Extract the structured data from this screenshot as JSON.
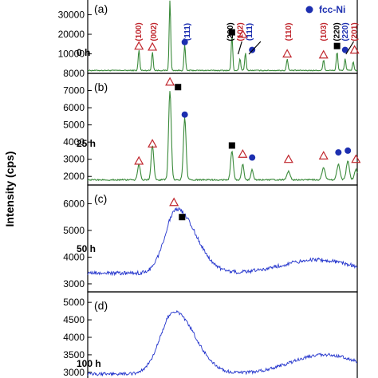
{
  "chart_data": [
    {
      "type": "line",
      "panel_label": "(a)",
      "time_label": "0 h",
      "color": "#3a8a3a",
      "ylim": [
        0,
        40000
      ],
      "yticks": [
        "10000",
        "20000",
        "30000"
      ],
      "ytick_values": [
        10000,
        20000,
        30000
      ],
      "baseline": 1500,
      "peaks": [
        {
          "x": 0.19,
          "y": 10500,
          "w": 0.004
        },
        {
          "x": 0.24,
          "y": 9500,
          "w": 0.004
        },
        {
          "x": 0.305,
          "y": 36000,
          "w": 0.004
        },
        {
          "x": 0.36,
          "y": 13000,
          "w": 0.004
        },
        {
          "x": 0.535,
          "y": 18000,
          "w": 0.004
        },
        {
          "x": 0.565,
          "y": 6000,
          "w": 0.004
        },
        {
          "x": 0.585,
          "y": 9000,
          "w": 0.004
        },
        {
          "x": 0.74,
          "y": 6000,
          "w": 0.004
        },
        {
          "x": 0.875,
          "y": 5500,
          "w": 0.004
        },
        {
          "x": 0.925,
          "y": 9500,
          "w": 0.004
        },
        {
          "x": 0.955,
          "y": 6000,
          "w": 0.004
        },
        {
          "x": 0.985,
          "y": 4500,
          "w": 0.004
        }
      ],
      "annotations": [
        {
          "text": "(100)",
          "x": 0.19,
          "color": "#c0262d"
        },
        {
          "text": "(002)",
          "x": 0.245,
          "color": "#c0262d"
        },
        {
          "text": "(111)",
          "x": 0.37,
          "color": "#1d2fb0"
        },
        {
          "text": "(200)",
          "x": 0.53,
          "color": "#000000"
        },
        {
          "text": "(102)",
          "x": 0.567,
          "color": "#c0262d"
        },
        {
          "text": "(111)",
          "x": 0.6,
          "color": "#1d2fb0"
        },
        {
          "text": "(110)",
          "x": 0.745,
          "color": "#c0262d"
        },
        {
          "text": "(103)",
          "x": 0.875,
          "color": "#c0262d"
        },
        {
          "text": "(220)",
          "x": 0.925,
          "color": "#000000"
        },
        {
          "text": "(220)",
          "x": 0.955,
          "color": "#1d2fb0"
        },
        {
          "text": "(201)",
          "x": 0.99,
          "color": "#c0262d"
        }
      ],
      "markers": [
        {
          "kind": "triangle",
          "x": 0.19,
          "y": 14000
        },
        {
          "kind": "triangle",
          "x": 0.24,
          "y": 13500
        },
        {
          "kind": "triangle",
          "x": 0.305,
          "y": 40000
        },
        {
          "kind": "circle",
          "x": 0.36,
          "y": 16000
        },
        {
          "kind": "square",
          "x": 0.535,
          "y": 21000
        },
        {
          "kind": "triangle",
          "x": 0.575,
          "y": 20000
        },
        {
          "kind": "circle",
          "x": 0.61,
          "y": 12000
        },
        {
          "kind": "triangle",
          "x": 0.74,
          "y": 10000
        },
        {
          "kind": "triangle",
          "x": 0.875,
          "y": 9500
        },
        {
          "kind": "square",
          "x": 0.925,
          "y": 14000
        },
        {
          "kind": "circle",
          "x": 0.955,
          "y": 12000
        },
        {
          "kind": "triangle",
          "x": 0.99,
          "y": 12000
        }
      ],
      "legend_text": "fcc-Ni"
    },
    {
      "type": "line",
      "panel_label": "(b)",
      "time_label": "25 h",
      "color": "#3a8a3a",
      "ylim": [
        1500,
        8000
      ],
      "yticks": [
        "2000",
        "3000",
        "4000",
        "5000",
        "6000",
        "7000",
        "8000"
      ],
      "ytick_values": [
        2000,
        3000,
        4000,
        5000,
        6000,
        7000,
        8000
      ],
      "baseline": 1800,
      "peaks": [
        {
          "x": 0.19,
          "y": 900,
          "w": 0.007
        },
        {
          "x": 0.24,
          "y": 2000,
          "w": 0.007
        },
        {
          "x": 0.305,
          "y": 5200,
          "w": 0.007
        },
        {
          "x": 0.36,
          "y": 3600,
          "w": 0.007
        },
        {
          "x": 0.535,
          "y": 1700,
          "w": 0.007
        },
        {
          "x": 0.575,
          "y": 900,
          "w": 0.006
        },
        {
          "x": 0.61,
          "y": 600,
          "w": 0.006
        },
        {
          "x": 0.745,
          "y": 500,
          "w": 0.008
        },
        {
          "x": 0.875,
          "y": 700,
          "w": 0.008
        },
        {
          "x": 0.93,
          "y": 900,
          "w": 0.008
        },
        {
          "x": 0.965,
          "y": 1100,
          "w": 0.008
        },
        {
          "x": 0.995,
          "y": 600,
          "w": 0.008
        }
      ],
      "markers": [
        {
          "kind": "triangle",
          "x": 0.19,
          "y": 2900
        },
        {
          "kind": "triangle",
          "x": 0.24,
          "y": 3900
        },
        {
          "kind": "triangle",
          "x": 0.305,
          "y": 7500
        },
        {
          "kind": "square",
          "x": 0.335,
          "y": 7200
        },
        {
          "kind": "circle",
          "x": 0.36,
          "y": 5600
        },
        {
          "kind": "square",
          "x": 0.535,
          "y": 3800
        },
        {
          "kind": "triangle",
          "x": 0.575,
          "y": 3300
        },
        {
          "kind": "circle",
          "x": 0.61,
          "y": 3100
        },
        {
          "kind": "triangle",
          "x": 0.745,
          "y": 3000
        },
        {
          "kind": "triangle",
          "x": 0.875,
          "y": 3200
        },
        {
          "kind": "circle",
          "x": 0.93,
          "y": 3400
        },
        {
          "kind": "circle",
          "x": 0.965,
          "y": 3500
        },
        {
          "kind": "triangle",
          "x": 0.995,
          "y": 3000
        }
      ]
    },
    {
      "type": "line",
      "panel_label": "(c)",
      "time_label": "50 h",
      "color": "#2233cc",
      "ylim": [
        2700,
        6700
      ],
      "yticks": [
        "3000",
        "4000",
        "5000",
        "6000"
      ],
      "ytick_values": [
        3000,
        4000,
        5000,
        6000
      ],
      "broad": {
        "center": 0.33,
        "height": 2400,
        "left": 0.06,
        "right": 0.1
      },
      "baseline": 3400,
      "hump": {
        "center": 0.85,
        "height": 500,
        "width": 0.18
      },
      "markers": [
        {
          "kind": "triangle",
          "x": 0.32,
          "y": 6050
        },
        {
          "kind": "square",
          "x": 0.35,
          "y": 5500
        }
      ]
    },
    {
      "type": "line",
      "panel_label": "(d)",
      "time_label": "100 h",
      "color": "#2233cc",
      "ylim": [
        2700,
        5300
      ],
      "yticks": [
        "3000",
        "3500",
        "4000",
        "4500",
        "5000"
      ],
      "ytick_values": [
        3000,
        3500,
        4000,
        4500,
        5000
      ],
      "broad": {
        "center": 0.32,
        "height": 1800,
        "left": 0.07,
        "right": 0.11
      },
      "baseline": 2950,
      "hump": {
        "center": 0.88,
        "height": 550,
        "width": 0.18
      },
      "markers": []
    }
  ],
  "ylabel": "Intensity (cps)"
}
